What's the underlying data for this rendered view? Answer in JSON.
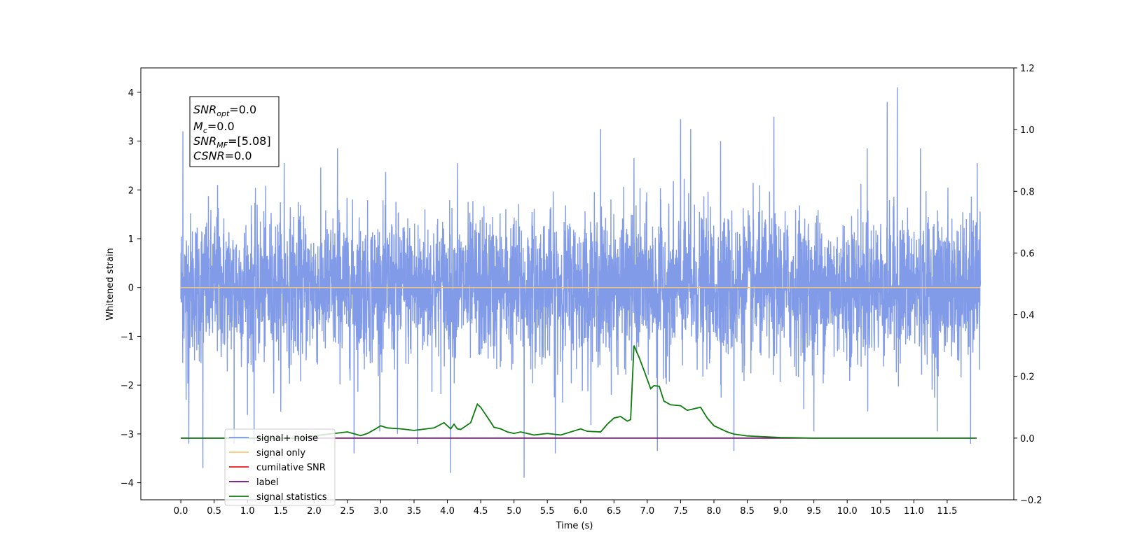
{
  "chart_data": {
    "type": "line",
    "xlabel": "Time (s)",
    "ylabel": "Whitened strain",
    "xlim": [
      -0.6,
      12.5
    ],
    "ylim": [
      -4.35,
      4.5
    ],
    "y2lim": [
      -0.2,
      1.2
    ],
    "grid": false,
    "legend_position": "lower-left",
    "x_ticks": [
      "0.0",
      "0.5",
      "1.0",
      "1.5",
      "2.0",
      "2.5",
      "3.0",
      "3.5",
      "4.0",
      "4.5",
      "5.0",
      "5.5",
      "6.0",
      "6.5",
      "7.0",
      "7.5",
      "8.0",
      "8.5",
      "9.0",
      "9.5",
      "10.0",
      "10.5",
      "11.0",
      "11.5"
    ],
    "y_ticks": [
      "4",
      "3",
      "2",
      "1",
      "0",
      "−1",
      "−2",
      "−3",
      "−4"
    ],
    "y2_ticks": [
      "1.2",
      "1.0",
      "0.8",
      "0.6",
      "0.4",
      "0.2",
      "0.0",
      "−0.2"
    ],
    "info_box": {
      "snr_opt": {
        "base": "SNR",
        "sub": "opt",
        "rest": "=0.0"
      },
      "mc": {
        "base": "M",
        "sub": "c",
        "rest": "=0.0"
      },
      "snr_mf": {
        "base": "SNR",
        "sub": "MF",
        "rest": "=[5.08]"
      },
      "csnr": {
        "base": "CSNR",
        "sub": "",
        "rest": "=0.0"
      }
    },
    "series": [
      {
        "name": "signal+ noise",
        "color": "#7b96e8",
        "axis": "left",
        "kind": "noise",
        "x_range": [
          0.0,
          12.0
        ],
        "std": 0.75,
        "spikes": [
          [
            0.03,
            3.2
          ],
          [
            0.08,
            -2.3
          ],
          [
            0.12,
            -3.2
          ],
          [
            0.33,
            -3.7
          ],
          [
            0.55,
            2.1
          ],
          [
            0.8,
            -3.2
          ],
          [
            1.1,
            -3.2
          ],
          [
            1.55,
            2.55
          ],
          [
            2.35,
            2.85
          ],
          [
            2.6,
            -3.4
          ],
          [
            3.25,
            -3.0
          ],
          [
            3.55,
            -3.2
          ],
          [
            4.05,
            -3.8
          ],
          [
            4.15,
            2.55
          ],
          [
            5.15,
            -3.9
          ],
          [
            5.62,
            -3.4
          ],
          [
            6.3,
            3.25
          ],
          [
            6.8,
            2.65
          ],
          [
            7.15,
            -3.35
          ],
          [
            7.5,
            3.45
          ],
          [
            7.65,
            3.25
          ],
          [
            8.1,
            3.0
          ],
          [
            8.3,
            -3.35
          ],
          [
            8.9,
            3.5
          ],
          [
            9.5,
            -2.95
          ],
          [
            10.3,
            2.85
          ],
          [
            10.6,
            3.8
          ],
          [
            10.75,
            4.1
          ],
          [
            11.1,
            2.85
          ],
          [
            11.35,
            -2.95
          ],
          [
            11.85,
            -3.2
          ],
          [
            11.95,
            2.55
          ]
        ]
      },
      {
        "name": "signal only",
        "color": "#f8c471",
        "axis": "left",
        "kind": "flat",
        "value": 0.0,
        "x_range": [
          0.0,
          12.0
        ]
      },
      {
        "name": "cumilative SNR",
        "color": "#e41a1c",
        "axis": "right",
        "kind": "flat",
        "value": 0.0,
        "x_range": [
          0.0,
          11.94
        ]
      },
      {
        "name": "label",
        "color": "#6a0a7e",
        "axis": "right",
        "kind": "flat",
        "value": 0.0,
        "x_range": [
          0.0,
          11.94
        ]
      },
      {
        "name": "signal statistics",
        "color": "#0c7c0c",
        "axis": "right",
        "kind": "line",
        "x": [
          0.0,
          1.8,
          2.1,
          2.3,
          2.5,
          2.7,
          2.8,
          2.9,
          3.0,
          3.1,
          3.3,
          3.5,
          3.8,
          3.95,
          4.05,
          4.1,
          4.15,
          4.2,
          4.35,
          4.45,
          4.5,
          4.6,
          4.7,
          4.8,
          4.9,
          5.0,
          5.1,
          5.2,
          5.3,
          5.5,
          5.7,
          6.0,
          6.1,
          6.3,
          6.4,
          6.5,
          6.6,
          6.7,
          6.75,
          6.8,
          6.88,
          6.95,
          7.05,
          7.1,
          7.18,
          7.25,
          7.35,
          7.5,
          7.6,
          7.7,
          7.8,
          7.9,
          8.0,
          8.2,
          8.3,
          8.5,
          9.0,
          9.5,
          10.0,
          11.0,
          11.94
        ],
        "y": [
          0.0,
          0.0,
          0.01,
          0.015,
          0.02,
          0.008,
          0.015,
          0.027,
          0.04,
          0.033,
          0.03,
          0.025,
          0.033,
          0.05,
          0.03,
          0.045,
          0.03,
          0.028,
          0.05,
          0.11,
          0.1,
          0.068,
          0.035,
          0.03,
          0.02,
          0.015,
          0.02,
          0.015,
          0.01,
          0.015,
          0.01,
          0.03,
          0.022,
          0.02,
          0.045,
          0.065,
          0.07,
          0.055,
          0.06,
          0.3,
          0.26,
          0.22,
          0.16,
          0.17,
          0.168,
          0.12,
          0.108,
          0.105,
          0.09,
          0.095,
          0.1,
          0.065,
          0.04,
          0.02,
          0.013,
          0.007,
          0.002,
          0.0,
          0.0,
          0.0,
          0.0
        ]
      }
    ]
  }
}
